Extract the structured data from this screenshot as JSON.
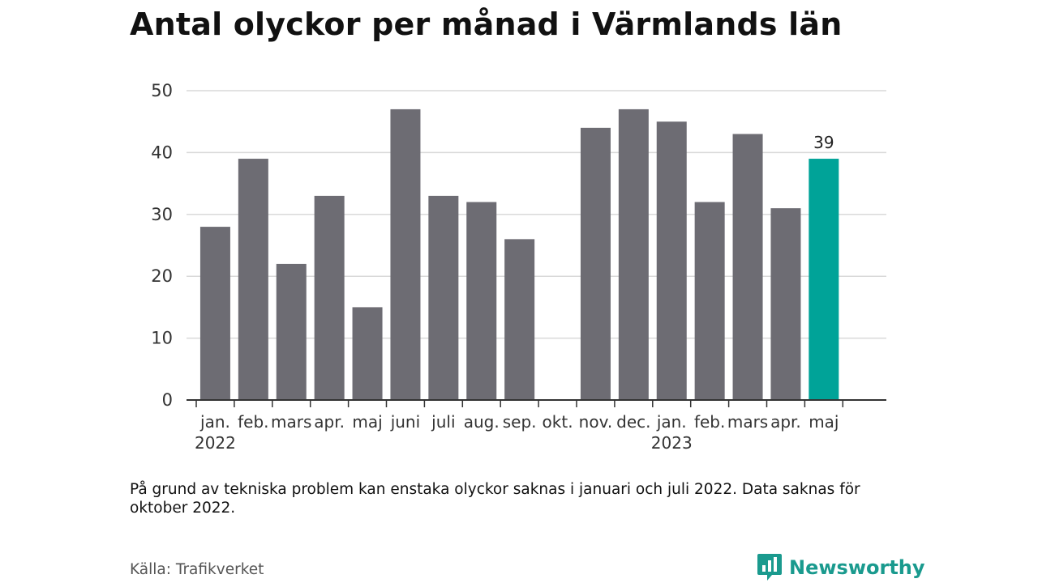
{
  "title": "Antal olyckor per månad i Värmlands län",
  "note": "På grund av tekniska problem kan enstaka olyckor saknas i januari och juli 2022. Data saknas för oktober 2022.",
  "source": "Källa: Trafikverket",
  "brand": {
    "name": "Newsworthy",
    "icon": "newsworthy-logo-icon"
  },
  "colors": {
    "bar": "#6d6c73",
    "highlight": "#00a398",
    "grid": "#d9d9d9",
    "axis": "#333333",
    "brand": "#1a9a8e"
  },
  "chart_data": {
    "type": "bar",
    "categories": [
      "jan.",
      "feb.",
      "mars",
      "apr.",
      "maj",
      "juni",
      "juli",
      "aug.",
      "sep.",
      "okt.",
      "nov.",
      "dec.",
      "jan.",
      "feb.",
      "mars",
      "apr.",
      "maj"
    ],
    "values": [
      28,
      39,
      22,
      33,
      15,
      47,
      33,
      32,
      26,
      null,
      44,
      47,
      45,
      32,
      43,
      31,
      39
    ],
    "year_labels": [
      {
        "label": "2022",
        "category_index": 0
      },
      {
        "label": "2023",
        "category_index": 12
      }
    ],
    "yticks": [
      0,
      10,
      20,
      30,
      40,
      50
    ],
    "ylim": [
      0,
      50
    ],
    "highlight_index": 16,
    "data_labels": [
      {
        "index": 16,
        "text": "39"
      }
    ],
    "grid": true
  }
}
